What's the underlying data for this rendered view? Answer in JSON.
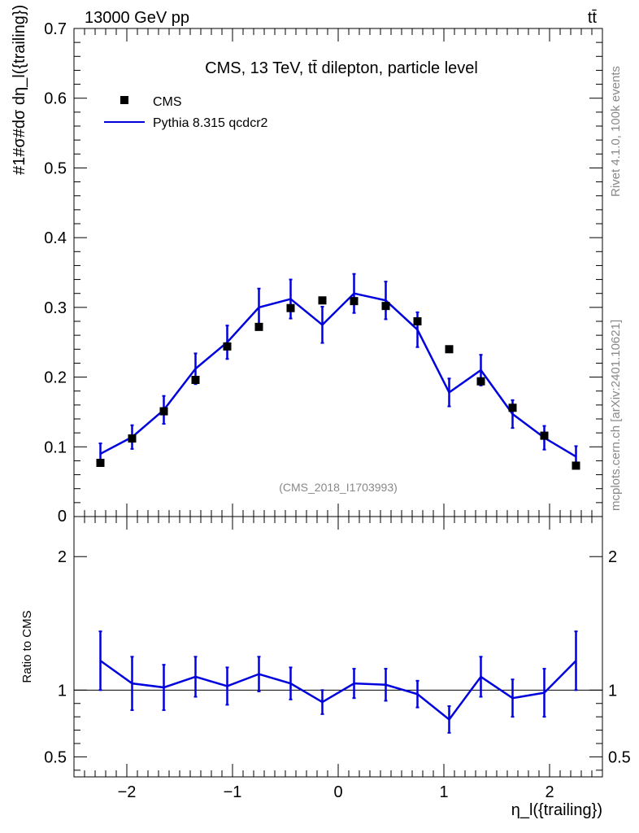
{
  "header": {
    "left": "13000 GeV pp",
    "right": "tt̄"
  },
  "side_text": {
    "top": "Rivet 4.1.0,  100k events",
    "bottom": "mcplots.cern.ch [arXiv:2401.10621]"
  },
  "chart_data": {
    "type": "scatter",
    "title": "CMS, 13 TeV, tt̄ dilepton, particle level",
    "watermark": "(CMS_2018_I1703993)",
    "xlabel": "η_l({trailing})",
    "ylabel": "#1#σ#dσ dη_l({trailing})",
    "xlim": [
      -2.5,
      2.5
    ],
    "main": {
      "ylim": [
        0,
        0.7
      ],
      "yticks": [
        0.1,
        0.2,
        0.3,
        0.4,
        0.5,
        0.6,
        0.7
      ],
      "ytick_labels": [
        "0.1",
        "0.2",
        "0.3",
        "0.4",
        "0.5",
        "0.6",
        "0.7"
      ],
      "zero_label": "0"
    },
    "ratio": {
      "ylabel": "Ratio to CMS",
      "ylim": [
        0.35,
        2.3
      ],
      "yticks": [
        0.5,
        1,
        2
      ],
      "ytick_labels": [
        "0.5",
        "1",
        "2"
      ]
    },
    "xticks": [
      -2,
      -1,
      0,
      1,
      2
    ],
    "xtick_labels": [
      "−2",
      "−1",
      "0",
      "1",
      "2"
    ],
    "x": [
      -2.25,
      -1.95,
      -1.65,
      -1.35,
      -1.05,
      -0.75,
      -0.45,
      -0.15,
      0.15,
      0.45,
      0.75,
      1.05,
      1.35,
      1.65,
      1.95,
      2.25
    ],
    "series": [
      {
        "name": "CMS",
        "style": "markers",
        "color": "#000000",
        "values": [
          0.077,
          0.112,
          0.151,
          0.196,
          0.244,
          0.272,
          0.299,
          0.31,
          0.309,
          0.302,
          0.28,
          0.24,
          0.194,
          0.156,
          0.116,
          0.073
        ]
      },
      {
        "name": "Pythia 8.315 qcdcr2",
        "style": "line",
        "color": "#0000dd",
        "values": [
          0.09,
          0.114,
          0.153,
          0.212,
          0.25,
          0.3,
          0.312,
          0.275,
          0.32,
          0.31,
          0.268,
          0.178,
          0.21,
          0.147,
          0.113,
          0.086
        ],
        "err": [
          0.015,
          0.017,
          0.02,
          0.022,
          0.024,
          0.027,
          0.028,
          0.026,
          0.028,
          0.027,
          0.025,
          0.02,
          0.022,
          0.02,
          0.017,
          0.015
        ],
        "ratio": [
          1.22,
          1.05,
          1.02,
          1.1,
          1.03,
          1.12,
          1.05,
          0.91,
          1.05,
          1.04,
          0.97,
          0.78,
          1.1,
          0.94,
          0.98,
          1.22
        ],
        "ratio_err": [
          0.22,
          0.2,
          0.17,
          0.15,
          0.14,
          0.13,
          0.12,
          0.09,
          0.11,
          0.12,
          0.1,
          0.1,
          0.15,
          0.14,
          0.18,
          0.22
        ]
      }
    ]
  }
}
